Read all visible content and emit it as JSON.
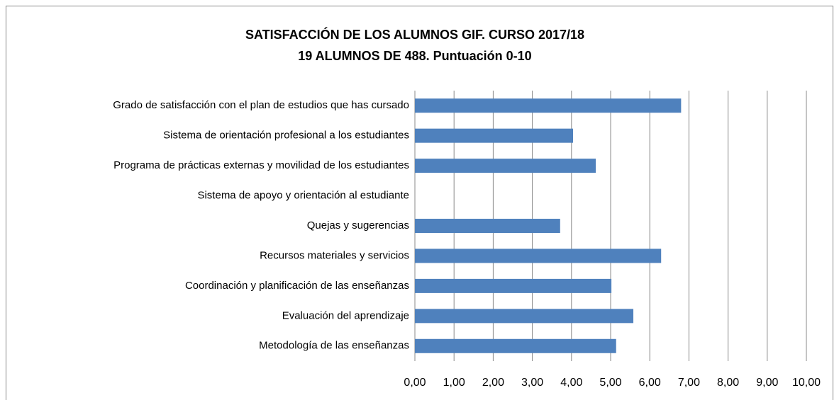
{
  "chart_data": {
    "type": "barh",
    "title": [
      "SATISFACCIÓN DE LOS ALUMNOS GIF. CURSO 2017/18",
      "19 ALUMNOS DE 488. Puntuación 0-10"
    ],
    "categories": [
      "Grado de satisfacción con el plan de estudios que has cursado",
      "Sistema de orientación profesional a los estudiantes",
      "Programa de prácticas externas y movilidad de los estudiantes",
      "Sistema de apoyo y orientación al estudiante",
      "Quejas y sugerencias",
      "Recursos materiales y servicios",
      "Coordinación y planificación de las enseñanzas",
      "Evaluación del aprendizaje",
      "Metodología de las enseñanzas"
    ],
    "values": [
      6.8,
      4.04,
      4.62,
      null,
      3.71,
      6.29,
      5.02,
      5.58,
      5.14
    ],
    "color": "#4f81bd",
    "xlim": [
      0,
      10
    ],
    "xticks": [
      {
        "value": 0,
        "label": "0,00"
      },
      {
        "value": 1,
        "label": "1,00"
      },
      {
        "value": 2,
        "label": "2,00"
      },
      {
        "value": 3,
        "label": "3,00"
      },
      {
        "value": 4,
        "label": "4,00"
      },
      {
        "value": 5,
        "label": "5,00"
      },
      {
        "value": 6,
        "label": "6,00"
      },
      {
        "value": 7,
        "label": "7,00"
      },
      {
        "value": 8,
        "label": "8,00"
      },
      {
        "value": 9,
        "label": "9,00"
      },
      {
        "value": 10,
        "label": "10,00"
      }
    ],
    "grid": true
  }
}
